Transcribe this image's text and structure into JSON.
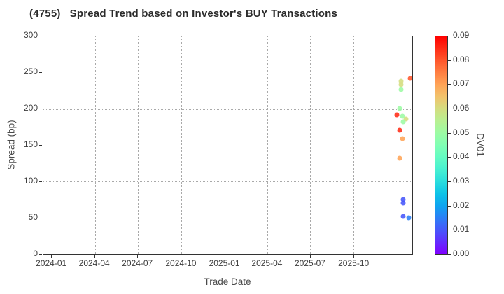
{
  "chart_data": {
    "type": "scatter",
    "title": "(4755)   Spread Trend based on Investor's BUY Transactions",
    "xlabel": "Trade Date",
    "ylabel": "Spread (bp)",
    "colorbar_label": "DV01",
    "grid": "dotted",
    "x_range": [
      "2023-12-14",
      "2026-02-02"
    ],
    "x_ticks": [
      {
        "value": "2024-01-01",
        "label": "2024-01"
      },
      {
        "value": "2024-04-01",
        "label": "2024-04"
      },
      {
        "value": "2024-07-01",
        "label": "2024-07"
      },
      {
        "value": "2024-10-01",
        "label": "2024-10"
      },
      {
        "value": "2025-01-01",
        "label": "2025-01"
      },
      {
        "value": "2025-04-01",
        "label": "2025-04"
      },
      {
        "value": "2025-07-01",
        "label": "2025-07"
      },
      {
        "value": "2025-10-01",
        "label": "2025-10"
      }
    ],
    "ylim": [
      0,
      300
    ],
    "y_ticks": [
      {
        "value": 0,
        "label": "0"
      },
      {
        "value": 50,
        "label": "50"
      },
      {
        "value": 100,
        "label": "100"
      },
      {
        "value": 150,
        "label": "150"
      },
      {
        "value": 200,
        "label": "200"
      },
      {
        "value": 250,
        "label": "250"
      },
      {
        "value": 300,
        "label": "300"
      }
    ],
    "colorbar": {
      "min": 0.0,
      "max": 0.09,
      "ticks": [
        {
          "value": 0.0,
          "label": "0.00"
        },
        {
          "value": 0.01,
          "label": "0.01"
        },
        {
          "value": 0.02,
          "label": "0.02"
        },
        {
          "value": 0.03,
          "label": "0.03"
        },
        {
          "value": 0.04,
          "label": "0.04"
        },
        {
          "value": 0.05,
          "label": "0.05"
        },
        {
          "value": 0.06,
          "label": "0.06"
        },
        {
          "value": 0.07,
          "label": "0.07"
        },
        {
          "value": 0.08,
          "label": "0.08"
        },
        {
          "value": 0.09,
          "label": "0.09"
        }
      ],
      "colormap": "rainbow",
      "anchor_colors": {
        "0.00": "#8000ff",
        "0.03": "#2bdddd",
        "0.05": "#9cfba4",
        "0.06": "#d4dd80",
        "0.07": "#ffa457",
        "0.08": "#ff572c",
        "0.09": "#ff0000"
      }
    },
    "points": [
      {
        "date": "2026-01-28",
        "spread": 242,
        "dv01": 0.08
      },
      {
        "date": "2026-01-09",
        "spread": 238,
        "dv01": 0.06
      },
      {
        "date": "2026-01-09",
        "spread": 233,
        "dv01": 0.06
      },
      {
        "date": "2026-01-09",
        "spread": 227,
        "dv01": 0.05
      },
      {
        "date": "2026-01-07",
        "spread": 201,
        "dv01": 0.05
      },
      {
        "date": "2025-12-31",
        "spread": 192,
        "dv01": 0.085
      },
      {
        "date": "2026-01-12",
        "spread": 190,
        "dv01": 0.05
      },
      {
        "date": "2026-01-20",
        "spread": 186,
        "dv01": 0.06
      },
      {
        "date": "2026-01-14",
        "spread": 182,
        "dv01": 0.05
      },
      {
        "date": "2026-01-07",
        "spread": 171,
        "dv01": 0.085
      },
      {
        "date": "2026-01-12",
        "spread": 159,
        "dv01": 0.07
      },
      {
        "date": "2026-01-06",
        "spread": 132,
        "dv01": 0.07
      },
      {
        "date": "2026-01-14",
        "spread": 75,
        "dv01": 0.01
      },
      {
        "date": "2026-01-14",
        "spread": 70,
        "dv01": 0.01
      },
      {
        "date": "2026-01-14",
        "spread": 52,
        "dv01": 0.01
      },
      {
        "date": "2026-01-26",
        "spread": 50,
        "dv01": 0.015
      }
    ]
  },
  "colors": {
    "frame": "#333333",
    "grid": "#a9a9a9",
    "tick_text": "#3d3d3d",
    "title_text": "#2b2b2b"
  }
}
